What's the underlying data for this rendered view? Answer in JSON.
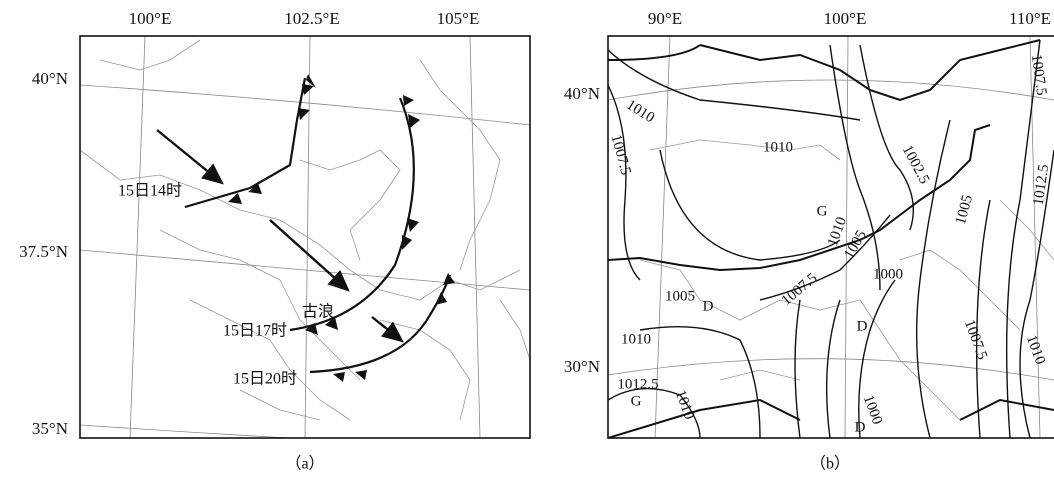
{
  "panels": [
    {
      "caption": "（a）",
      "lon_labels": [
        "100°E",
        "102.5°E",
        "105°E"
      ],
      "lat_labels": [
        "40°N",
        "37.5°N",
        "35°N"
      ],
      "annotations": [
        "15日14时",
        "15日17时",
        "15日20时",
        "古浪"
      ]
    },
    {
      "caption": "（b）",
      "lon_labels": [
        "90°E",
        "100°E",
        "110°E"
      ],
      "lat_labels": [
        "40°N",
        "30°N"
      ],
      "isobar_labels": [
        "1010",
        "1007.5",
        "1010",
        "1002.5",
        "1005",
        "1012.5",
        "1007.5",
        "1010",
        "1005",
        "1000",
        "1007.5",
        "1005",
        "1010",
        "1012.5",
        "1010",
        "1000",
        "1007.5",
        "1010"
      ],
      "centers": [
        "G",
        "D",
        "D",
        "G",
        "D"
      ]
    }
  ]
}
